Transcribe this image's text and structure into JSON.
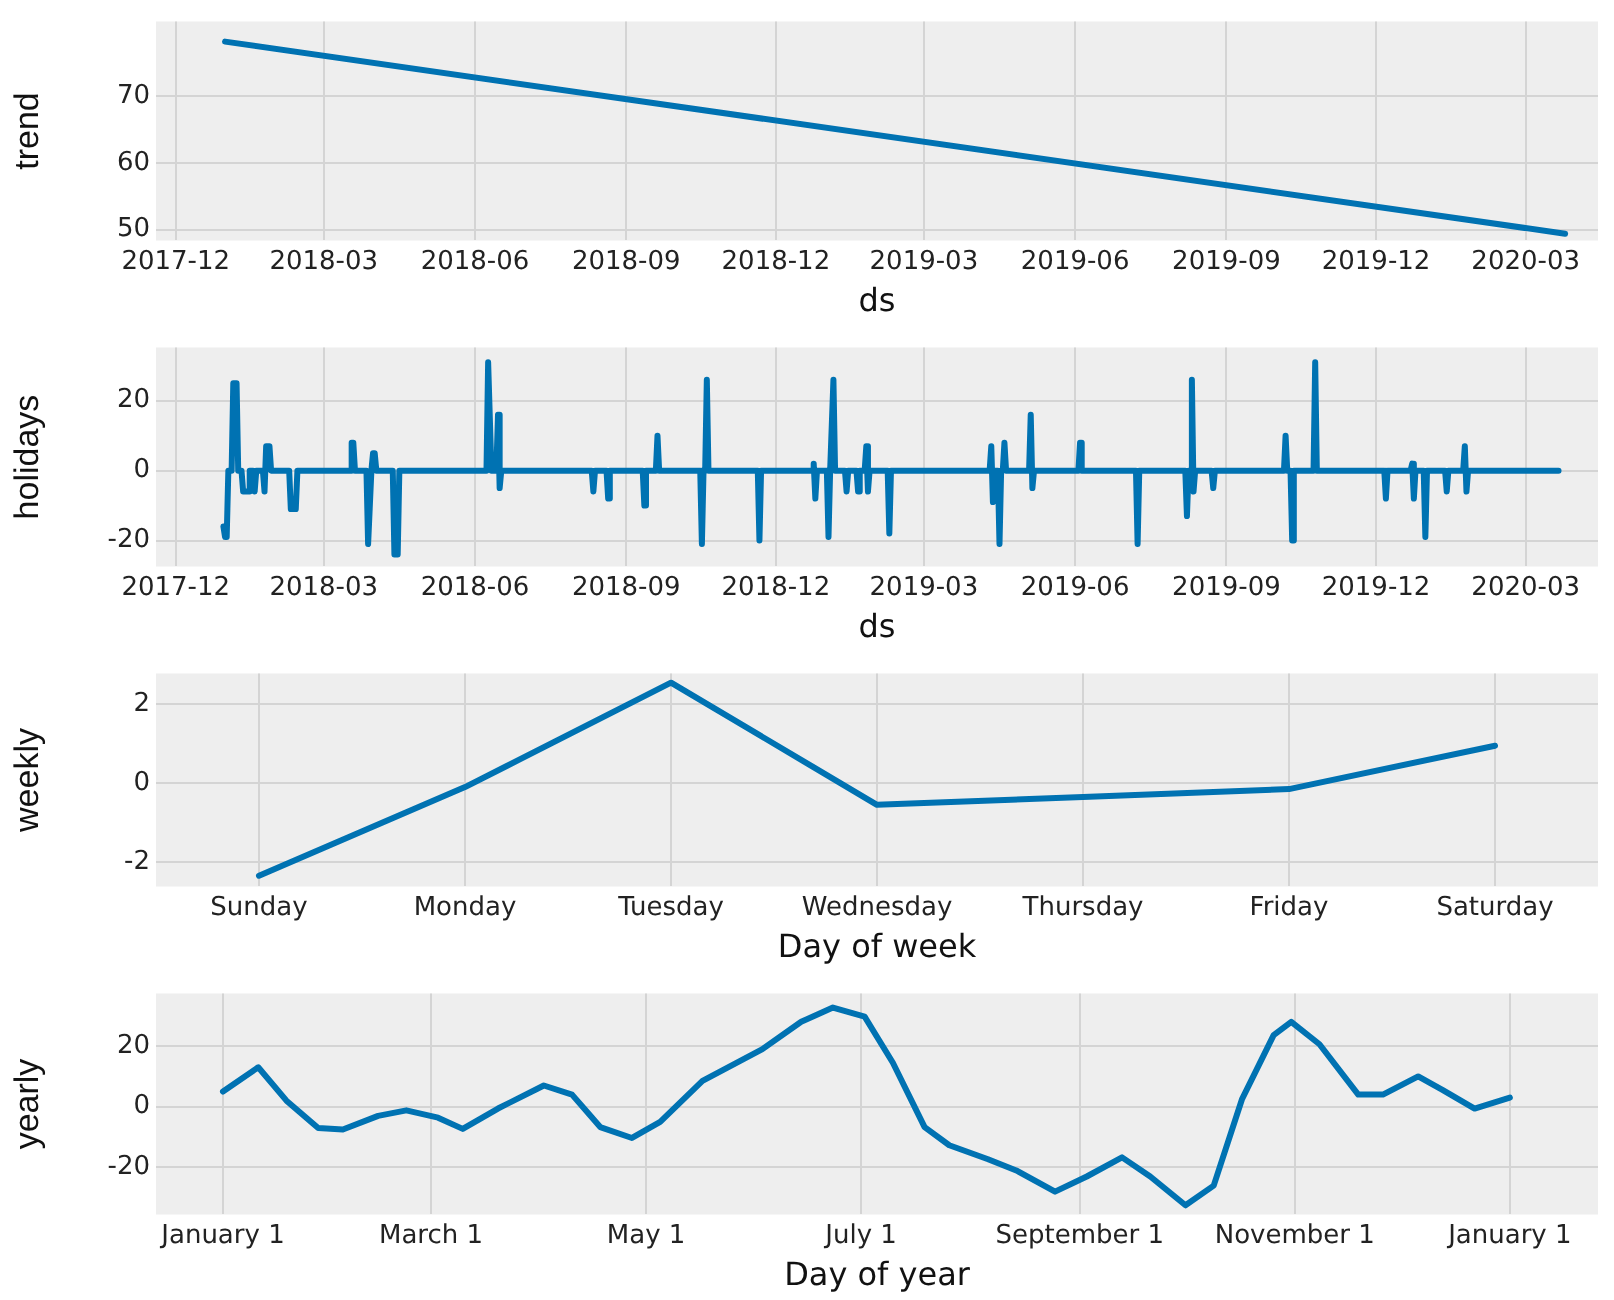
{
  "chart_data": [
    {
      "type": "line",
      "xlabel": "ds",
      "ylabel": "trend",
      "color": "#0072b2",
      "grid": true,
      "x": [
        "2017-12-31",
        "2020-03-25"
      ],
      "values": [
        78.2,
        49.4
      ],
      "xlim": [
        "2017-11-19",
        "2020-04-14"
      ],
      "xticks": [
        "2017-12",
        "2018-03",
        "2018-06",
        "2018-09",
        "2018-12",
        "2019-03",
        "2019-06",
        "2019-09",
        "2019-12",
        "2020-03"
      ],
      "ylim": [
        48.4,
        81.2
      ],
      "yticks": [
        50,
        60,
        70
      ]
    },
    {
      "type": "line",
      "xlabel": "ds",
      "ylabel": "holidays",
      "color": "#0072b2",
      "grid": true,
      "x": [
        "2017-12-30",
        "2017-12-31",
        "2018-01-01",
        "2018-01-02",
        "2018-01-04",
        "2018-01-05",
        "2018-01-07",
        "2018-01-08",
        "2018-01-10",
        "2018-01-11",
        "2018-01-14",
        "2018-01-15",
        "2018-01-17",
        "2018-01-18",
        "2018-01-19",
        "2018-01-23",
        "2018-01-24",
        "2018-01-25",
        "2018-01-27",
        "2018-01-28",
        "2018-02-08",
        "2018-02-09",
        "2018-02-12",
        "2018-02-13",
        "2018-03-17",
        "2018-03-18",
        "2018-03-19",
        "2018-03-20",
        "2018-03-27",
        "2018-03-28",
        "2018-03-29",
        "2018-03-30",
        "2018-03-31",
        "2018-04-01",
        "2018-04-02",
        "2018-04-12",
        "2018-04-13",
        "2018-04-15",
        "2018-04-16",
        "2018-06-08",
        "2018-06-09",
        "2018-06-10",
        "2018-06-11",
        "2018-06-14",
        "2018-06-15",
        "2018-06-16",
        "2018-06-17",
        "2018-08-11",
        "2018-08-12",
        "2018-08-13",
        "2018-08-20",
        "2018-08-21",
        "2018-08-22",
        "2018-09-11",
        "2018-09-12",
        "2018-09-13",
        "2018-09-19",
        "2018-09-20",
        "2018-09-21",
        "2018-10-16",
        "2018-10-17",
        "2018-10-18",
        "2018-10-19",
        "2018-10-20",
        "2018-10-21",
        "2018-11-20",
        "2018-11-21",
        "2018-11-22",
        "2018-12-23",
        "2018-12-24",
        "2018-12-25",
        "2018-12-26",
        "2019-01-01",
        "2019-01-02",
        "2019-01-03",
        "2019-01-04",
        "2019-01-05",
        "2019-01-06",
        "2019-01-12",
        "2019-01-13",
        "2019-01-14",
        "2019-01-19",
        "2019-01-20",
        "2019-01-21",
        "2019-01-24",
        "2019-01-25",
        "2019-01-26",
        "2019-01-27",
        "2019-02-07",
        "2019-02-08",
        "2019-02-09",
        "2019-04-10",
        "2019-04-11",
        "2019-04-12",
        "2019-04-13",
        "2019-04-15",
        "2019-04-16",
        "2019-04-17",
        "2019-04-18",
        "2019-04-19",
        "2019-04-20",
        "2019-05-04",
        "2019-05-05",
        "2019-05-06",
        "2019-05-07",
        "2019-06-03",
        "2019-06-04",
        "2019-06-05",
        "2019-07-08",
        "2019-07-09",
        "2019-07-10",
        "2019-08-07",
        "2019-08-08",
        "2019-08-09",
        "2019-08-10",
        "2019-08-11",
        "2019-08-12",
        "2019-08-13",
        "2019-08-23",
        "2019-08-24",
        "2019-08-25",
        "2019-10-06",
        "2019-10-07",
        "2019-10-08",
        "2019-10-10",
        "2019-10-11",
        "2019-10-12",
        "2019-10-24",
        "2019-10-25",
        "2019-10-26",
        "2019-12-06",
        "2019-12-07",
        "2019-12-08",
        "2019-12-22",
        "2019-12-23",
        "2019-12-24",
        "2019-12-25",
        "2019-12-30",
        "2019-12-31",
        "2020-01-01",
        "2020-01-12",
        "2020-01-13",
        "2020-01-14",
        "2020-01-23",
        "2020-01-24",
        "2020-01-25",
        "2020-01-26",
        "2020-03-21"
      ],
      "values": [
        -16,
        -19,
        -19,
        0,
        0,
        25,
        25,
        0,
        0,
        -6,
        -6,
        0,
        0,
        -6,
        0,
        0,
        -6,
        7,
        7,
        0,
        0,
        -11,
        -11,
        0,
        0,
        8,
        8,
        0,
        0,
        -21,
        -21,
        0,
        5,
        5,
        0,
        0,
        -24,
        -24,
        0,
        0,
        31,
        31,
        0,
        0,
        16,
        -5,
        0,
        0,
        -6,
        0,
        0,
        -8,
        0,
        0,
        -10,
        0,
        0,
        10,
        0,
        0,
        -21,
        0,
        0,
        26,
        0,
        0,
        -20,
        0,
        0,
        2,
        -8,
        0,
        0,
        -19,
        0,
        0,
        26,
        0,
        0,
        -6,
        0,
        0,
        -6,
        0,
        0,
        7,
        -6,
        0,
        0,
        -18,
        0,
        0,
        7,
        -9,
        0,
        0,
        -21,
        0,
        0,
        8,
        0,
        0,
        16,
        -5,
        0,
        0,
        8,
        0,
        0,
        -21,
        0,
        0,
        -13,
        0,
        0,
        26,
        -6,
        0,
        0,
        -5,
        0,
        0,
        10,
        0,
        0,
        -20,
        0,
        0,
        31,
        0,
        0,
        -8,
        0,
        0,
        2,
        -8,
        0,
        0,
        -19,
        0,
        0,
        -6,
        0,
        0,
        7,
        -6,
        0,
        0
      ],
      "xlim": [
        "2017-11-19",
        "2020-04-14"
      ],
      "xticks": [
        "2017-12",
        "2018-03",
        "2018-06",
        "2018-09",
        "2018-12",
        "2019-03",
        "2019-06",
        "2019-09",
        "2019-12",
        "2020-03"
      ],
      "ylim": [
        -27.4,
        35.2
      ],
      "yticks": [
        -20,
        0,
        20
      ]
    },
    {
      "type": "line",
      "xlabel": "Day of week",
      "ylabel": "weekly",
      "color": "#0072b2",
      "grid": true,
      "categories": [
        "Sunday",
        "Monday",
        "Tuesday",
        "Wednesday",
        "Thursday",
        "Friday",
        "Saturday"
      ],
      "values": [
        -2.35,
        -0.1,
        2.55,
        -0.55,
        -0.35,
        -0.15,
        0.95
      ],
      "ylim": [
        -2.62,
        2.78
      ],
      "yticks": [
        -2,
        0,
        2
      ]
    },
    {
      "type": "line",
      "xlabel": "Day of year",
      "ylabel": "yearly",
      "color": "#0072b2",
      "grid": true,
      "x": [
        "2017-01-01",
        "2017-01-11",
        "2017-01-19",
        "2017-01-28",
        "2017-02-04",
        "2017-02-14",
        "2017-02-22",
        "2017-03-03",
        "2017-03-10",
        "2017-03-20",
        "2017-04-02",
        "2017-04-10",
        "2017-04-18",
        "2017-04-27",
        "2017-05-05",
        "2017-05-17",
        "2017-06-03",
        "2017-06-14",
        "2017-06-23",
        "2017-07-02",
        "2017-07-10",
        "2017-07-19",
        "2017-07-26",
        "2017-08-06",
        "2017-08-14",
        "2017-08-25",
        "2017-09-03",
        "2017-09-13",
        "2017-09-21",
        "2017-10-01",
        "2017-10-09",
        "2017-10-17",
        "2017-10-26",
        "2017-10-31",
        "2017-11-08",
        "2017-11-19",
        "2017-11-26",
        "2017-12-06",
        "2017-12-13",
        "2017-12-22",
        "2018-01-01"
      ],
      "values": [
        5,
        13,
        2,
        -7,
        -7.5,
        -3,
        -1.2,
        -3.6,
        -7.3,
        -0.6,
        7,
        4,
        -6.7,
        -10.3,
        -5,
        8.5,
        19,
        28,
        32.7,
        29.7,
        14.5,
        -6.7,
        -12.7,
        -17.3,
        -21,
        -28,
        -23,
        -16.7,
        -23,
        -32.5,
        -26,
        2.4,
        23.6,
        28,
        20.6,
        4,
        4,
        10,
        5.5,
        -0.6,
        3
      ],
      "xlim": [
        "2016-12-13",
        "2018-01-26"
      ],
      "xticks": [
        {
          "value": "2017-01-01",
          "label": "January 1"
        },
        {
          "value": "2017-03-01",
          "label": "March 1"
        },
        {
          "value": "2017-05-01",
          "label": "May 1"
        },
        {
          "value": "2017-07-01",
          "label": "July 1"
        },
        {
          "value": "2017-09-01",
          "label": "September 1"
        },
        {
          "value": "2017-11-01",
          "label": "November 1"
        },
        {
          "value": "2018-01-01",
          "label": "January 1"
        }
      ],
      "ylim": [
        -35.5,
        37.3
      ],
      "yticks": [
        -20,
        0,
        20
      ]
    }
  ]
}
